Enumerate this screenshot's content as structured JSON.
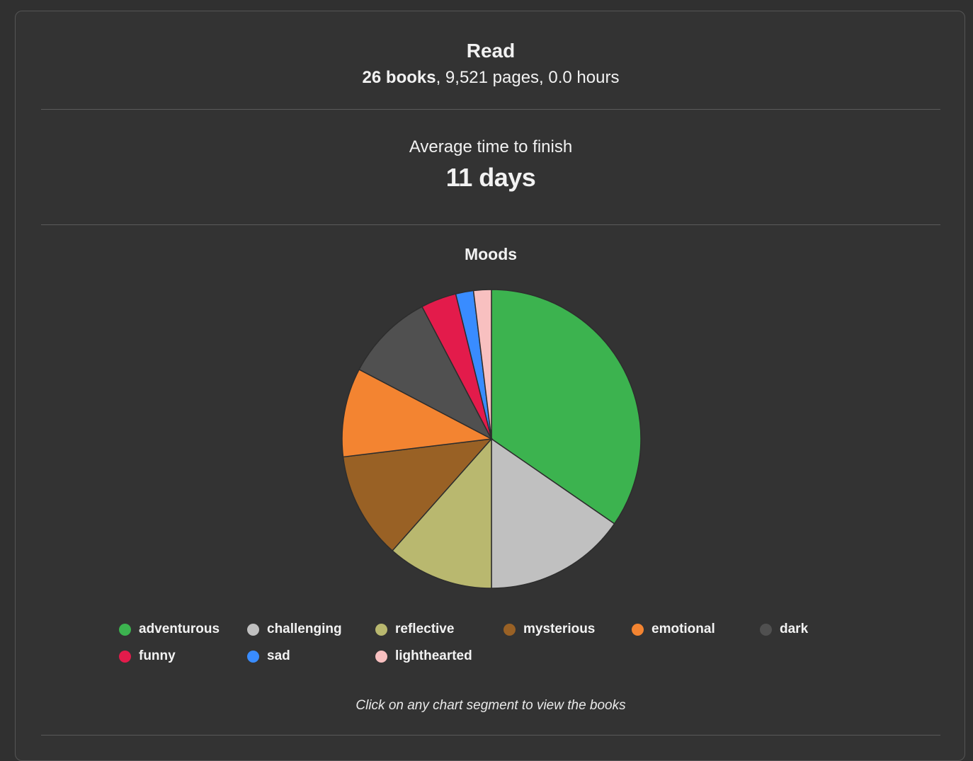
{
  "read": {
    "title": "Read",
    "books": "26 books",
    "rest": ", 9,521 pages, 0.0 hours"
  },
  "average": {
    "label": "Average time to finish",
    "value": "11 days"
  },
  "moods": {
    "title": "Moods",
    "hint": "Click on any chart segment to view the books"
  },
  "chart_data": {
    "type": "pie",
    "title": "Moods",
    "categories": [
      "adventurous",
      "challenging",
      "reflective",
      "mysterious",
      "emotional",
      "dark",
      "funny",
      "sad",
      "lighthearted"
    ],
    "values": [
      18,
      8,
      6,
      6,
      5,
      5,
      2,
      1,
      1
    ],
    "colors": [
      "#3cb34f",
      "#c0c0c0",
      "#b9b86f",
      "#996125",
      "#f38431",
      "#505050",
      "#e31b4b",
      "#398cff",
      "#f8c0c0"
    ],
    "legend_position": "bottom",
    "start_angle": "12 o'clock, clockwise"
  }
}
